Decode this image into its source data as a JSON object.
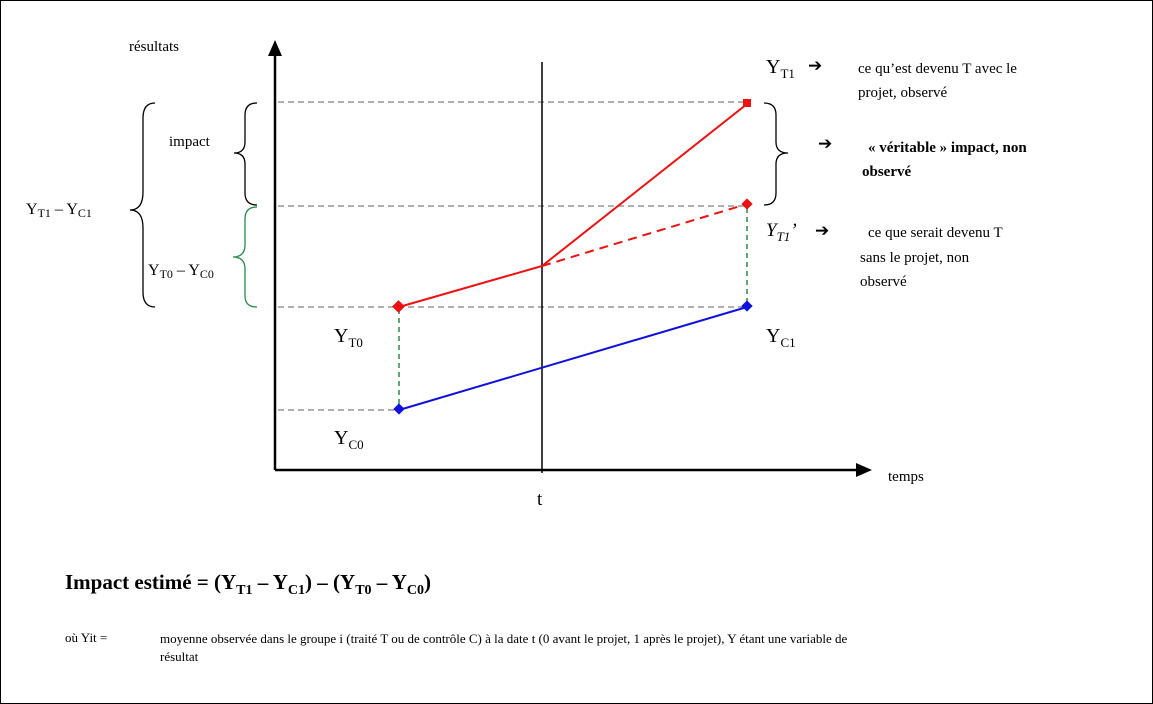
{
  "axes": {
    "y_label": "résultats",
    "x_label": "temps",
    "t_label": "t"
  },
  "points": {
    "YT0": {
      "main": "Y",
      "sub": "T0"
    },
    "YC0": {
      "main": "Y",
      "sub": "C0"
    },
    "YC1": {
      "main": "Y",
      "sub": "C1"
    },
    "YT1": {
      "main": "Y",
      "sub": "T1"
    },
    "YT1p": {
      "main": "Y",
      "sub": "T1",
      "prime": "’"
    }
  },
  "annotations": {
    "yt1_desc_line1": "ce qu’est devenu T avec le",
    "yt1_desc_line2": "projet, observé",
    "true_impact_line1": "« véritable » impact, non",
    "true_impact_line2": "observé",
    "yt1p_desc_line1": "ce que serait devenu T",
    "yt1p_desc_line2": "sans le projet, non",
    "yt1p_desc_line3": "observé",
    "impact_brace": "impact",
    "left_brace_main": "Y",
    "left_brace_sub1": "T1",
    "left_brace_dash": " – ",
    "left_brace_sub2": "C1",
    "green_brace_main": "Y",
    "green_brace_sub1": "T0",
    "green_brace_dash": " – ",
    "green_brace_sub2": "C0",
    "arrow_glyph": "➔"
  },
  "formula": {
    "lead": "Impact estimé = (Y",
    "s1": "T1",
    "m1": " – Y",
    "s2": "C1",
    "m2": ") – (Y",
    "s3": "T0",
    "m3": " – Y",
    "s4": "C0",
    "end": ")"
  },
  "note": {
    "label": "où Yit =",
    "text": "moyenne observée dans le groupe i (traité T ou de contrôle C) à la date t (0 avant le projet, 1 après le projet), Y étant une variable de résultat"
  },
  "colors": {
    "treated": "#ee1111",
    "control": "#1111dd",
    "green": "#2a8a4a",
    "gridline": "#808080"
  }
}
